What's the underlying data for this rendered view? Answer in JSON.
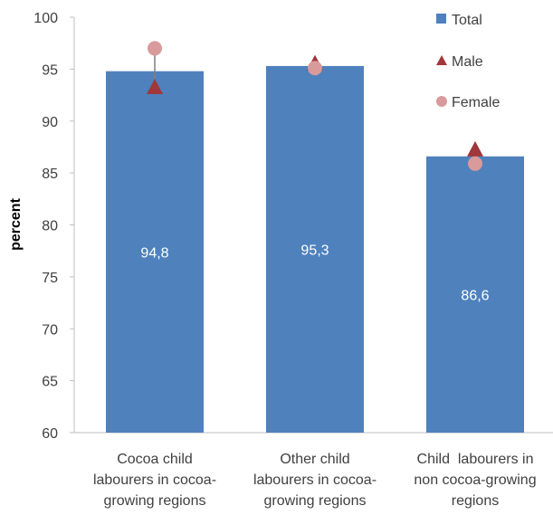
{
  "chart_data": {
    "type": "bar",
    "title": "",
    "ylabel": "percent",
    "ylim": [
      60,
      100
    ],
    "yticks": [
      60,
      65,
      70,
      75,
      80,
      85,
      90,
      95,
      100
    ],
    "categories": [
      [
        "Cocoa child",
        "labourers in cocoa-",
        "growing regions"
      ],
      [
        "Other child",
        "labourers in cocoa-",
        "growing regions"
      ],
      [
        "Child  labourers in",
        "non cocoa-growing",
        "regions"
      ]
    ],
    "series": [
      {
        "name": "Total",
        "kind": "bar",
        "color": "#4f81bd",
        "values": [
          94.8,
          95.3,
          86.6
        ],
        "labels": [
          "94,8",
          "95,3",
          "86,6"
        ]
      },
      {
        "name": "Male",
        "kind": "marker",
        "marker": "triangle",
        "color": "#a0373a",
        "values": [
          93.2,
          95.5,
          87.2
        ]
      },
      {
        "name": "Female",
        "kind": "marker",
        "marker": "circle",
        "color": "#d99a9b",
        "values": [
          97.0,
          95.1,
          85.9
        ]
      }
    ],
    "grid": false,
    "legend_position": "top-right"
  }
}
